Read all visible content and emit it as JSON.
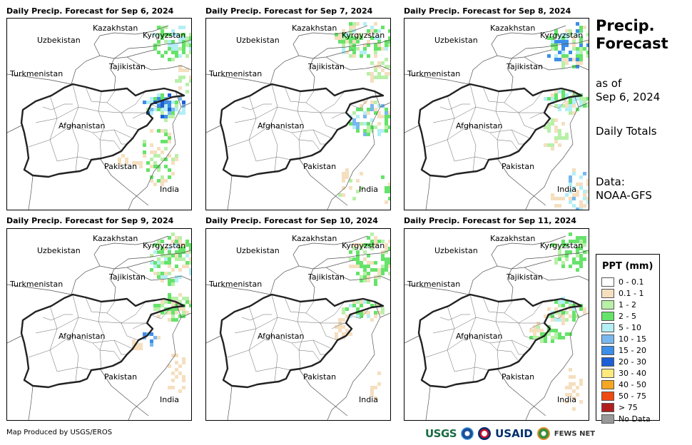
{
  "panels": [
    {
      "title": "Daily Precip. Forecast for Sep 6, 2024"
    },
    {
      "title": "Daily Precip. Forecast for Sep 7, 2024"
    },
    {
      "title": "Daily Precip. Forecast for Sep 8, 2024"
    },
    {
      "title": "Daily Precip. Forecast for Sep 9, 2024"
    },
    {
      "title": "Daily Precip. Forecast for Sep 10, 2024"
    },
    {
      "title": "Daily Precip. Forecast for Sep 11, 2024"
    }
  ],
  "country_labels": {
    "kazakhstan": "Kazakhstan",
    "kyrgyzstan": "Kyrgyzstan",
    "uzbekistan": "Uzbekistan",
    "tajikistan": "Tajikistan",
    "turkmenistan": "Turkmenistan",
    "afghanistan": "Afghanistan",
    "pakistan": "Pakistan",
    "india": "India"
  },
  "sidebar": {
    "title_line1": "Precip.",
    "title_line2": "Forecast",
    "asof_line1": "as of",
    "asof_line2": "Sep 6, 2024",
    "daily": "Daily Totals",
    "data_line1": "Data:",
    "data_line2": "NOAA-GFS"
  },
  "legend": {
    "title": "PPT (mm)",
    "items": [
      {
        "label": "0 - 0.1",
        "color": "#ffffff"
      },
      {
        "label": "0.1 - 1",
        "color": "#f5dfbf"
      },
      {
        "label": "1 - 2",
        "color": "#b8f0a8"
      },
      {
        "label": "2 - 5",
        "color": "#66e36a"
      },
      {
        "label": "5 - 10",
        "color": "#b3eff5"
      },
      {
        "label": "10 - 15",
        "color": "#78b8ef"
      },
      {
        "label": "15 - 20",
        "color": "#3d8ee8"
      },
      {
        "label": "20 - 30",
        "color": "#1d5fd6"
      },
      {
        "label": "30 - 40",
        "color": "#fde97e"
      },
      {
        "label": "40 - 50",
        "color": "#f5a623"
      },
      {
        "label": "50 - 75",
        "color": "#ef4a12"
      },
      {
        "label": "> 75",
        "color": "#b01f1f"
      },
      {
        "label": "No Data",
        "color": "#999999"
      }
    ]
  },
  "footer": {
    "credit": "Map Produced by USGS/EROS",
    "logo_usgs": "USGS",
    "logo_usaid": "USAID",
    "logo_fews": "FEWS NET"
  }
}
